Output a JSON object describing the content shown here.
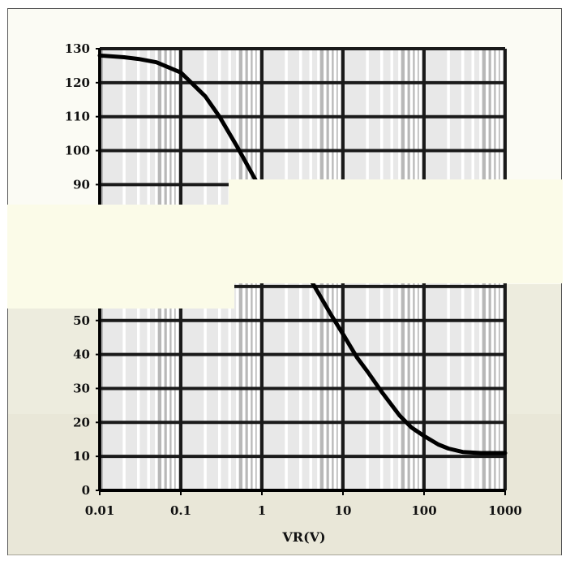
{
  "chart_data": {
    "type": "line",
    "xscale": "log",
    "xlim": [
      0.01,
      1000
    ],
    "ylim": [
      0,
      130
    ],
    "grid": true,
    "xlabel": "VR(V)",
    "ylabel": "",
    "title": "",
    "x_ticks": [
      {
        "value": 0.01,
        "label": "0.01"
      },
      {
        "value": 0.1,
        "label": "0.1"
      },
      {
        "value": 1,
        "label": "1"
      },
      {
        "value": 10,
        "label": "10"
      },
      {
        "value": 100,
        "label": "100"
      },
      {
        "value": 1000,
        "label": "1000"
      }
    ],
    "y_ticks": [
      {
        "value": 0,
        "label": "0"
      },
      {
        "value": 10,
        "label": "10"
      },
      {
        "value": 20,
        "label": "20"
      },
      {
        "value": 30,
        "label": "30"
      },
      {
        "value": 40,
        "label": "40"
      },
      {
        "value": 50,
        "label": "50"
      },
      {
        "value": 60,
        "label": ""
      },
      {
        "value": 70,
        "label": ""
      },
      {
        "value": 80,
        "label": ""
      },
      {
        "value": 90,
        "label": "90"
      },
      {
        "value": 100,
        "label": "100"
      },
      {
        "value": 110,
        "label": "110"
      },
      {
        "value": 120,
        "label": "120"
      },
      {
        "value": 130,
        "label": "130"
      }
    ],
    "series": [
      {
        "x": [
          0.01,
          0.02,
          0.03,
          0.05,
          0.1,
          0.2,
          0.3,
          0.5,
          1,
          1.5,
          2,
          3,
          5,
          7,
          10,
          15,
          20,
          30,
          50,
          70,
          100,
          150,
          200,
          300,
          500,
          1000
        ],
        "y": [
          128,
          127.5,
          127,
          126,
          123,
          116,
          110,
          101,
          88,
          80,
          75,
          67,
          58,
          52,
          46,
          39,
          35,
          29,
          22,
          18.5,
          16,
          13.5,
          12.3,
          11.3,
          11,
          11
        ]
      }
    ],
    "colors": {
      "curve": "#000000",
      "grid_major": "#1a1a1a",
      "grid_minor": "#ffffff",
      "band_dark": "#b8b8b8",
      "plot_bg": "#e8e8e8"
    }
  }
}
